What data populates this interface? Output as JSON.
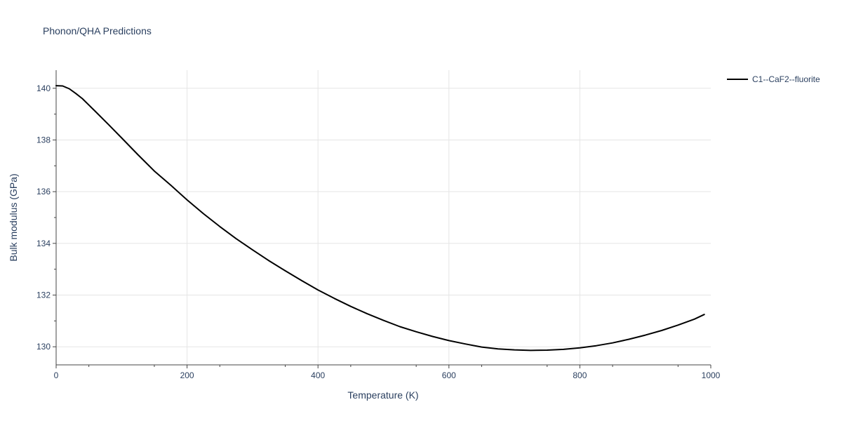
{
  "chart_data": {
    "type": "line",
    "title": "Phonon/QHA Predictions",
    "xlabel": "Temperature (K)",
    "ylabel": "Bulk modulus (GPa)",
    "xlim": [
      0,
      1000
    ],
    "ylim": [
      129.3,
      140.7
    ],
    "x_ticks": [
      0,
      200,
      400,
      600,
      800,
      1000
    ],
    "y_ticks": [
      130,
      132,
      134,
      136,
      138,
      140
    ],
    "grid": true,
    "legend_position": "top-right",
    "colors": {
      "series": "#000000",
      "grid": "#e5e5e5",
      "axis_text": "#2a3f5f"
    },
    "series": [
      {
        "name": "C1--CaF2--fluorite",
        "x": [
          0,
          10,
          20,
          30,
          40,
          60,
          80,
          100,
          125,
          150,
          175,
          200,
          225,
          250,
          275,
          300,
          325,
          350,
          375,
          400,
          425,
          450,
          475,
          500,
          525,
          550,
          575,
          600,
          625,
          650,
          675,
          700,
          725,
          750,
          775,
          800,
          825,
          850,
          875,
          900,
          925,
          950,
          975,
          990
        ],
        "y": [
          140.1,
          140.09,
          139.98,
          139.8,
          139.6,
          139.1,
          138.6,
          138.08,
          137.43,
          136.8,
          136.25,
          135.68,
          135.15,
          134.65,
          134.18,
          133.75,
          133.33,
          132.94,
          132.56,
          132.2,
          131.87,
          131.56,
          131.28,
          131.02,
          130.78,
          130.58,
          130.4,
          130.24,
          130.11,
          129.99,
          129.92,
          129.88,
          129.86,
          129.87,
          129.9,
          129.96,
          130.04,
          130.15,
          130.29,
          130.45,
          130.63,
          130.84,
          131.07,
          131.25
        ]
      }
    ]
  }
}
